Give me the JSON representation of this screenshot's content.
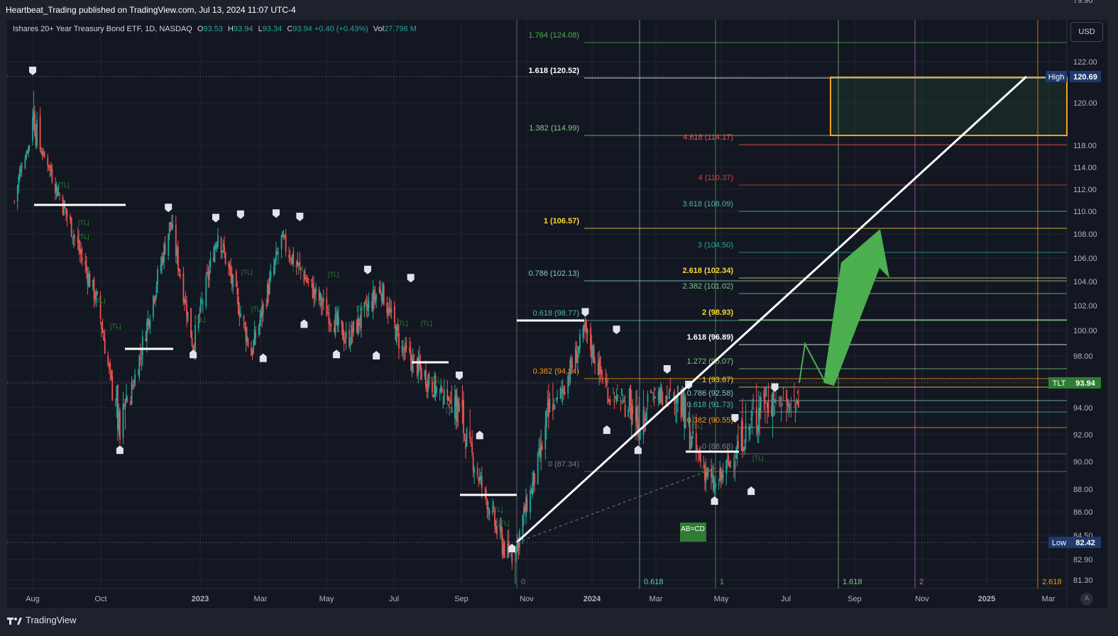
{
  "header": {
    "published": "Heartbeat_Trading published on TradingView.com, Jul 13, 2024 11:07 UTC-4"
  },
  "legend": {
    "symbol": "Ishares 20+ Year Treasury Bond ETF, 1D, NASDAQ",
    "o_label": "O",
    "o": "93.53",
    "h_label": "H",
    "h": "93.94",
    "l_label": "L",
    "l": "93.34",
    "c_label": "C",
    "c": "93.94",
    "change": "+0.40 (+0.43%)",
    "vol_label": "Vol",
    "vol": "27.796 M"
  },
  "currency_button": "USD",
  "auto_button": "A",
  "footer": {
    "brand": "TradingView"
  },
  "colors": {
    "background": "#131722",
    "frame": "#1e222d",
    "up": "#26a69a",
    "down": "#ef5350",
    "target_box": "#f7a21b",
    "projection_arrow": "#4caf50",
    "price_tag": "#2e7d32",
    "extreme_tag": "#1e3a6e"
  },
  "chart_data": {
    "type": "candlestick",
    "title": "Ishares 20+ Year Treasury Bond ETF, 1D, NASDAQ",
    "x_ticks": [
      "Aug",
      "Oct",
      "2023",
      "Mar",
      "May",
      "Jul",
      "Sep",
      "Nov",
      "2024",
      "Mar",
      "May",
      "Jul",
      "Sep",
      "Nov",
      "2025",
      "Mar"
    ],
    "y_ticks": [
      "122.00",
      "120.00",
      "118.00",
      "114.00",
      "112.00",
      "110.00",
      "108.00",
      "106.00",
      "104.00",
      "102.00",
      "100.00",
      "98.00",
      "96.00",
      "94.00",
      "92.00",
      "90.00",
      "88.00",
      "86.00",
      "84.50",
      "82.90",
      "81.30",
      "79.90"
    ],
    "price_scale_labels": [
      {
        "text": "High",
        "value": "120.69"
      },
      {
        "text": "TLT",
        "value": "93.94"
      },
      {
        "text": "Low",
        "value": "82.42"
      }
    ],
    "close_path": [
      {
        "date": "2022-07-15",
        "price": 110.9
      },
      {
        "date": "2022-08-01",
        "price": 119.8
      },
      {
        "date": "2022-08-20",
        "price": 113.0
      },
      {
        "date": "2022-09-10",
        "price": 107.5
      },
      {
        "date": "2022-10-01",
        "price": 102.0
      },
      {
        "date": "2022-10-21",
        "price": 91.5
      },
      {
        "date": "2022-11-10",
        "price": 98.5
      },
      {
        "date": "2022-12-07",
        "price": 109.0
      },
      {
        "date": "2022-12-28",
        "price": 98.8
      },
      {
        "date": "2023-01-20",
        "price": 108.2
      },
      {
        "date": "2023-02-20",
        "price": 98.2
      },
      {
        "date": "2023-03-20",
        "price": 107.5
      },
      {
        "date": "2023-04-20",
        "price": 103.0
      },
      {
        "date": "2023-05-20",
        "price": 99.2
      },
      {
        "date": "2023-06-20",
        "price": 103.5
      },
      {
        "date": "2023-07-10",
        "price": 98.5
      },
      {
        "date": "2023-08-10",
        "price": 95.5
      },
      {
        "date": "2023-09-05",
        "price": 92.3
      },
      {
        "date": "2023-10-05",
        "price": 85.0
      },
      {
        "date": "2023-10-20",
        "price": 82.42
      },
      {
        "date": "2023-11-20",
        "price": 92.0
      },
      {
        "date": "2023-12-27",
        "price": 99.9
      },
      {
        "date": "2024-01-20",
        "price": 94.5
      },
      {
        "date": "2024-02-15",
        "price": 92.5
      },
      {
        "date": "2024-03-10",
        "price": 95.5
      },
      {
        "date": "2024-04-25",
        "price": 88.0
      },
      {
        "date": "2024-05-20",
        "price": 91.5
      },
      {
        "date": "2024-06-10",
        "price": 93.5
      },
      {
        "date": "2024-07-12",
        "price": 93.94
      }
    ],
    "fib_levels_left": [
      {
        "label": "1.764",
        "value": "(124.08)",
        "color": "#4caf50"
      },
      {
        "label": "1.618",
        "value": "(120.52)",
        "color": "#ffffff"
      },
      {
        "label": "1.382",
        "value": "(114.99)",
        "color": "#81c784"
      },
      {
        "label": "1",
        "value": "(106.57)",
        "color": "#fdd835"
      },
      {
        "label": "0.786",
        "value": "(102.13)",
        "color": "#80cbc4"
      },
      {
        "label": "0.618",
        "value": "(98.77)",
        "color": "#4db6ac"
      },
      {
        "label": "0.382",
        "value": "(94.24)",
        "color": "#ff9800"
      },
      {
        "label": "0",
        "value": "(87.34)",
        "color": "#787b86"
      }
    ],
    "fib_levels_right": [
      {
        "label": "4.618",
        "value": "(114.17)",
        "color": "#ef5350"
      },
      {
        "label": "4",
        "value": "(110.37)",
        "color": "#e53935"
      },
      {
        "label": "3.618",
        "value": "(108.09)",
        "color": "#4db6ac"
      },
      {
        "label": "3",
        "value": "(104.50)",
        "color": "#26a69a"
      },
      {
        "label": "2.618",
        "value": "(102.34)",
        "color": "#fdd835"
      },
      {
        "label": "2.382",
        "value": "(101.02)",
        "color": "#81c784"
      },
      {
        "label": "2",
        "value": "(98.93)",
        "color": "#fdd835"
      },
      {
        "label": "1.618",
        "value": "(96.89)",
        "color": "#ffffff"
      },
      {
        "label": "1.272",
        "value": "(95.07)",
        "color": "#81c784"
      },
      {
        "label": "1",
        "value": "(93.67)",
        "color": "#fdd835"
      },
      {
        "label": "0.786",
        "value": "(92.58)",
        "color": "#80cbc4"
      },
      {
        "label": "0.618",
        "value": "(91.73)",
        "color": "#4db6ac"
      },
      {
        "label": "0.382",
        "value": "(90.55)",
        "color": "#ff9800"
      },
      {
        "label": "0",
        "value": "(88.68)",
        "color": "#787b86"
      }
    ],
    "time_fib_labels": [
      {
        "text": "0",
        "color": "#787b86"
      },
      {
        "text": "0.618",
        "color": "#4dd0e1"
      },
      {
        "text": "1",
        "color": "#4caf50"
      },
      {
        "text": "1.618",
        "color": "#81c784"
      },
      {
        "text": "2",
        "color": "#ba68c8"
      },
      {
        "text": "2.618",
        "color": "#ff9800"
      }
    ],
    "annotations": {
      "abcd_label": "AB=CD",
      "pattern_tag": "[TL]",
      "projection_note": "arrow projecting upward to the target box near the 1.618 (120.52) level"
    }
  }
}
